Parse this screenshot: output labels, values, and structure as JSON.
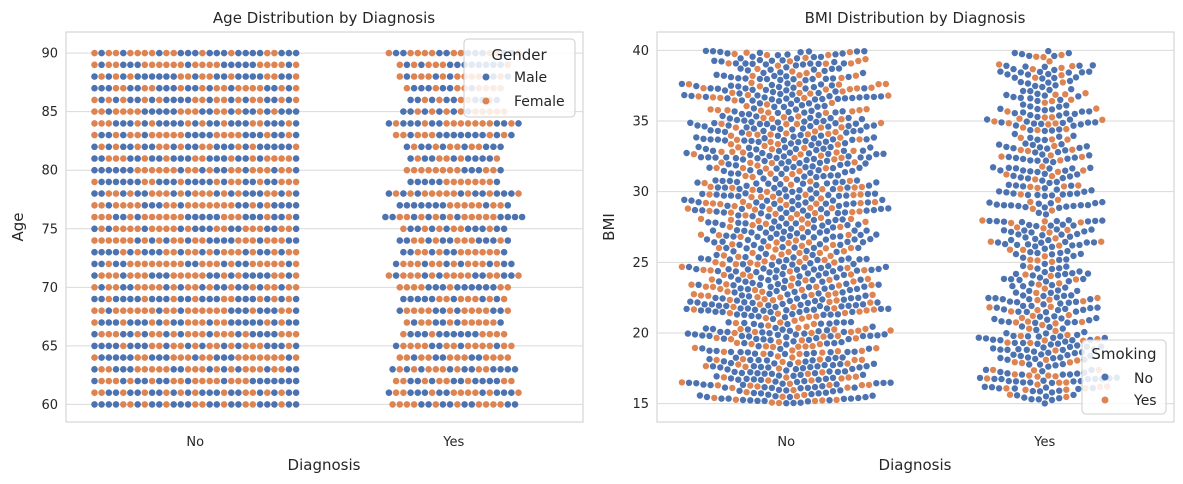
{
  "colors": {
    "blue": "#4c72b0",
    "orange": "#dd8452",
    "grid": "#d9d9d9",
    "frame": "#cccccc",
    "text": "#262626"
  },
  "chart_data": [
    {
      "type": "scatter",
      "style": "swarm",
      "title": "Age Distribution by Diagnosis",
      "xlabel": "Diagnosis",
      "ylabel": "Age",
      "categories": [
        "No",
        "Yes"
      ],
      "ylim": [
        58.5,
        91.8
      ],
      "yticks": [
        "60",
        "65",
        "70",
        "75",
        "80",
        "85",
        "90"
      ],
      "grid": "horizontal",
      "value_type": "integer ages 60-90",
      "legend": {
        "title": "Gender",
        "position": "top-right",
        "entries": [
          "Male",
          "Female"
        ]
      },
      "series": [
        {
          "name": "Male",
          "color": "#4c72b0"
        },
        {
          "name": "Female",
          "color": "#dd8452"
        }
      ],
      "approx_points_per_age": {
        "No": 29,
        "Yes": 15
      },
      "yes_counts_by_age": {
        "60": 18,
        "61": 19,
        "62": 17,
        "63": 18,
        "64": 16,
        "65": 17,
        "66": 15,
        "67": 14,
        "68": 16,
        "69": 15,
        "70": 16,
        "71": 19,
        "72": 17,
        "73": 15,
        "74": 16,
        "75": 15,
        "76": 20,
        "77": 16,
        "78": 19,
        "79": 13,
        "80": 14,
        "81": 13,
        "82": 14,
        "83": 17,
        "84": 19,
        "85": 15,
        "86": 13,
        "87": 14,
        "88": 16,
        "89": 16,
        "90": 19
      }
    },
    {
      "type": "scatter",
      "style": "swarm",
      "title": "BMI Distribution by Diagnosis",
      "xlabel": "Diagnosis",
      "ylabel": "BMI",
      "categories": [
        "No",
        "Yes"
      ],
      "ylim": [
        13.7,
        41.3
      ],
      "yticks": [
        "15",
        "20",
        "25",
        "30",
        "35",
        "40"
      ],
      "grid": "horizontal",
      "value_range": [
        15,
        40
      ],
      "legend": {
        "title": "Smoking",
        "position": "bottom-right",
        "entries": [
          "No",
          "Yes"
        ]
      },
      "series": [
        {
          "name": "No",
          "color": "#4c72b0"
        },
        {
          "name": "Yes",
          "color": "#dd8452"
        }
      ],
      "approx_points": {
        "No": 1130,
        "Yes": 530
      },
      "approx_share_yes": 0.3
    }
  ]
}
